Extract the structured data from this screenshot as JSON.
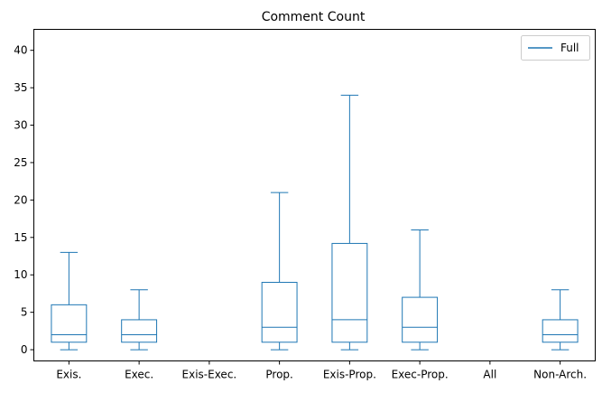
{
  "chart_data": {
    "type": "box",
    "title": "Comment Count",
    "xlabel": "",
    "ylabel": "",
    "ylim": [
      -1.5,
      42.8
    ],
    "yticks": [
      0,
      5,
      10,
      15,
      20,
      25,
      30,
      35,
      40
    ],
    "grid": false,
    "legend": {
      "position": "top-right",
      "entries": [
        "Full"
      ]
    },
    "series": [
      {
        "name": "Full",
        "color": "#1f77b4",
        "categories": [
          "Exis.",
          "Exec.",
          "Exis-Exec.",
          "Prop.",
          "Exis-Prop.",
          "Exec-Prop.",
          "All",
          "Non-Arch."
        ],
        "boxes": [
          {
            "whisker_low": 0,
            "q1": 1,
            "median": 2,
            "q3": 6,
            "whisker_high": 13
          },
          {
            "whisker_low": 0,
            "q1": 1,
            "median": 2,
            "q3": 4,
            "whisker_high": 8
          },
          null,
          {
            "whisker_low": 0,
            "q1": 1,
            "median": 3,
            "q3": 9,
            "whisker_high": 21
          },
          {
            "whisker_low": 0,
            "q1": 1,
            "median": 4,
            "q3": 14.2,
            "whisker_high": 34
          },
          {
            "whisker_low": 0,
            "q1": 1,
            "median": 3,
            "q3": 7,
            "whisker_high": 16
          },
          null,
          {
            "whisker_low": 0,
            "q1": 1,
            "median": 2,
            "q3": 4,
            "whisker_high": 8
          }
        ]
      }
    ]
  }
}
